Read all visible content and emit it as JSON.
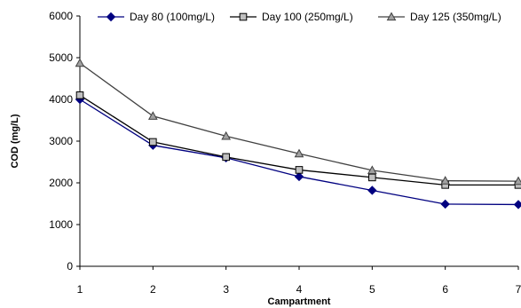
{
  "chart_data": {
    "type": "line",
    "title": "",
    "xlabel": "Campartment",
    "ylabel": "COD (mg/L)",
    "x": [
      1,
      2,
      3,
      4,
      5,
      6,
      7
    ],
    "xlim": [
      1,
      7
    ],
    "ylim": [
      0,
      6000
    ],
    "yticks": [
      0,
      1000,
      2000,
      3000,
      4000,
      5000,
      6000
    ],
    "grid": false,
    "legend_position": "top",
    "series": [
      {
        "name": "Day 80 (100mg/L)",
        "marker": "diamond",
        "color": "#000080",
        "values": [
          4000,
          2900,
          2600,
          2150,
          1820,
          1490,
          1480
        ]
      },
      {
        "name": "Day 100 (250mg/L)",
        "marker": "square",
        "color": "#000000",
        "values": [
          4100,
          2980,
          2620,
          2310,
          2130,
          1950,
          1950
        ]
      },
      {
        "name": "Day 125 (350mg/L)",
        "marker": "triangle",
        "color": "#404040",
        "values": [
          4870,
          3600,
          3120,
          2700,
          2300,
          2050,
          2040
        ]
      }
    ]
  }
}
